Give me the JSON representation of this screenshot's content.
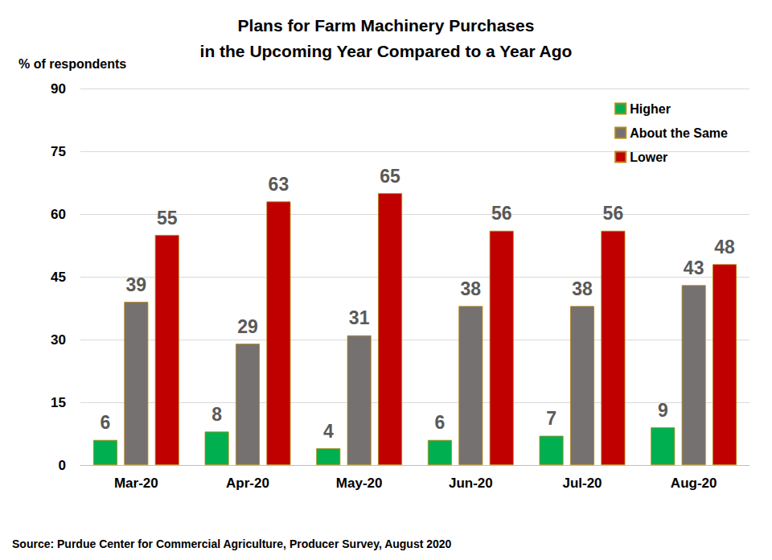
{
  "chart_data": {
    "type": "bar",
    "title": "Plans for Farm Machinery Purchases\nin the Upcoming Year Compared to a Year Ago",
    "ylabel": "% of respondents",
    "source": "Source: Purdue Center for Commercial Agriculture, Producer Survey, August 2020",
    "categories": [
      "Mar-20",
      "Apr-20",
      "May-20",
      "Jun-20",
      "Jul-20",
      "Aug-20"
    ],
    "series": [
      {
        "name": "Higher",
        "color": "#00b050",
        "values": [
          6,
          8,
          4,
          6,
          7,
          9
        ]
      },
      {
        "name": "About the Same",
        "color": "#767171",
        "values": [
          39,
          29,
          31,
          38,
          38,
          43
        ]
      },
      {
        "name": "Lower",
        "color": "#c00000",
        "values": [
          55,
          63,
          65,
          56,
          56,
          48
        ]
      }
    ],
    "ylim": [
      0,
      90
    ],
    "yticks": [
      0,
      15,
      30,
      45,
      60,
      75,
      90
    ],
    "grid": true,
    "legend": "upper right",
    "data_labels": true
  }
}
